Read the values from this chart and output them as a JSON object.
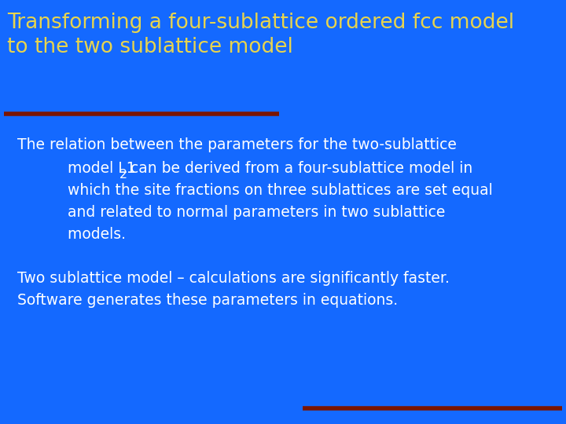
{
  "background_color": "#1469FF",
  "title_line1": "Transforming a four-sublattice ordered fcc model",
  "title_line2": "to the two sublattice model",
  "title_color": "#E8D44D",
  "title_fontsize": 19,
  "body_color": "#FFFFFF",
  "body_fontsize": 13.5,
  "separator_line_color": "#7B1500",
  "paragraph1_line1": "The relation between the parameters for the two-sublattice",
  "paragraph1_line2a": "   model L1",
  "paragraph1_line2b": "2",
  "paragraph1_line2c": " can be derived from a four-sublattice model in",
  "paragraph1_line3": "   which the site fractions on three sublattices are set equal",
  "paragraph1_line4": "   and related to normal parameters in two sublattice",
  "paragraph1_line5": "   models.",
  "paragraph2_line1": "Two sublattice model – calculations are significantly faster.",
  "paragraph2_line2": "Software generates these parameters in equations."
}
